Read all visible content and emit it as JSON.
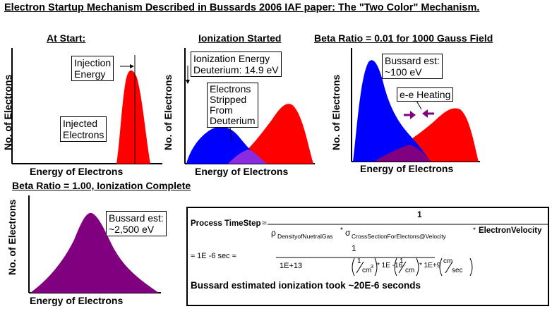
{
  "title": "Electron Startup Mechanism Described in Bussards 2006 IAF paper: The \"Two Color\" Mechanism.",
  "colors": {
    "blue": "#0000ff",
    "red": "#ff0000",
    "purple": "#800080",
    "violet": "#8a2be2"
  },
  "panels": {
    "start": {
      "title": "At Start:",
      "ylabel": "No. of Electrons",
      "xlabel": "Energy of Electrons",
      "injection_label": [
        "Injection",
        "Energy"
      ],
      "injected_label": [
        "Injected",
        "Electrons"
      ]
    },
    "ionization": {
      "title": "Ionization Started",
      "ylabel": "No. of Electrons",
      "xlabel": "Energy of Electrons",
      "energy_label": [
        "Ionization Energy",
        "Deuterium: 14.9 eV"
      ],
      "stripped_label": [
        "Electrons",
        "Stripped",
        "From",
        "Deuterium"
      ]
    },
    "beta001": {
      "title": "Beta Ratio = 0.01 for 1000 Gauss Field",
      "ylabel": "No. of Electrons",
      "xlabel": "Energy of Electrons",
      "estimate_label": [
        "Bussard est:",
        "~100 eV"
      ],
      "heating_label": "e-e Heating"
    },
    "beta100": {
      "title": "Beta Ratio = 1.00, Ionization Complete",
      "ylabel": "No. of Electrons",
      "xlabel": "Energy of Electrons",
      "estimate_label": [
        "Bussard est:",
        "~2,500 eV"
      ]
    }
  },
  "formula": {
    "lhs": "Process TimeStep",
    "approx": "≈",
    "numerator": "1",
    "rho": "ρ",
    "rho_sub": "DensityofNuetralGas",
    "times": "*",
    "sigma": "σ",
    "sigma_sub": "CrossSectionForElectons@Velocity",
    "velocity": "ElectronVelocity",
    "line2_lead": "≈ 1E -6 sec ≈",
    "line2_num": "1",
    "den_a": "1E+13",
    "den_unit_a_num": "1",
    "den_unit_a_den": "cm",
    "den_unit_a_exp": "3",
    "den_b": "* 1E -16",
    "den_unit_b_num": "1",
    "den_unit_b_den": "cm",
    "den_c": "* 1E+9",
    "den_unit_c_num": "cm",
    "den_unit_c_den": "sec",
    "note": "Bussard estimated ionization took ~20E-6 seconds"
  }
}
